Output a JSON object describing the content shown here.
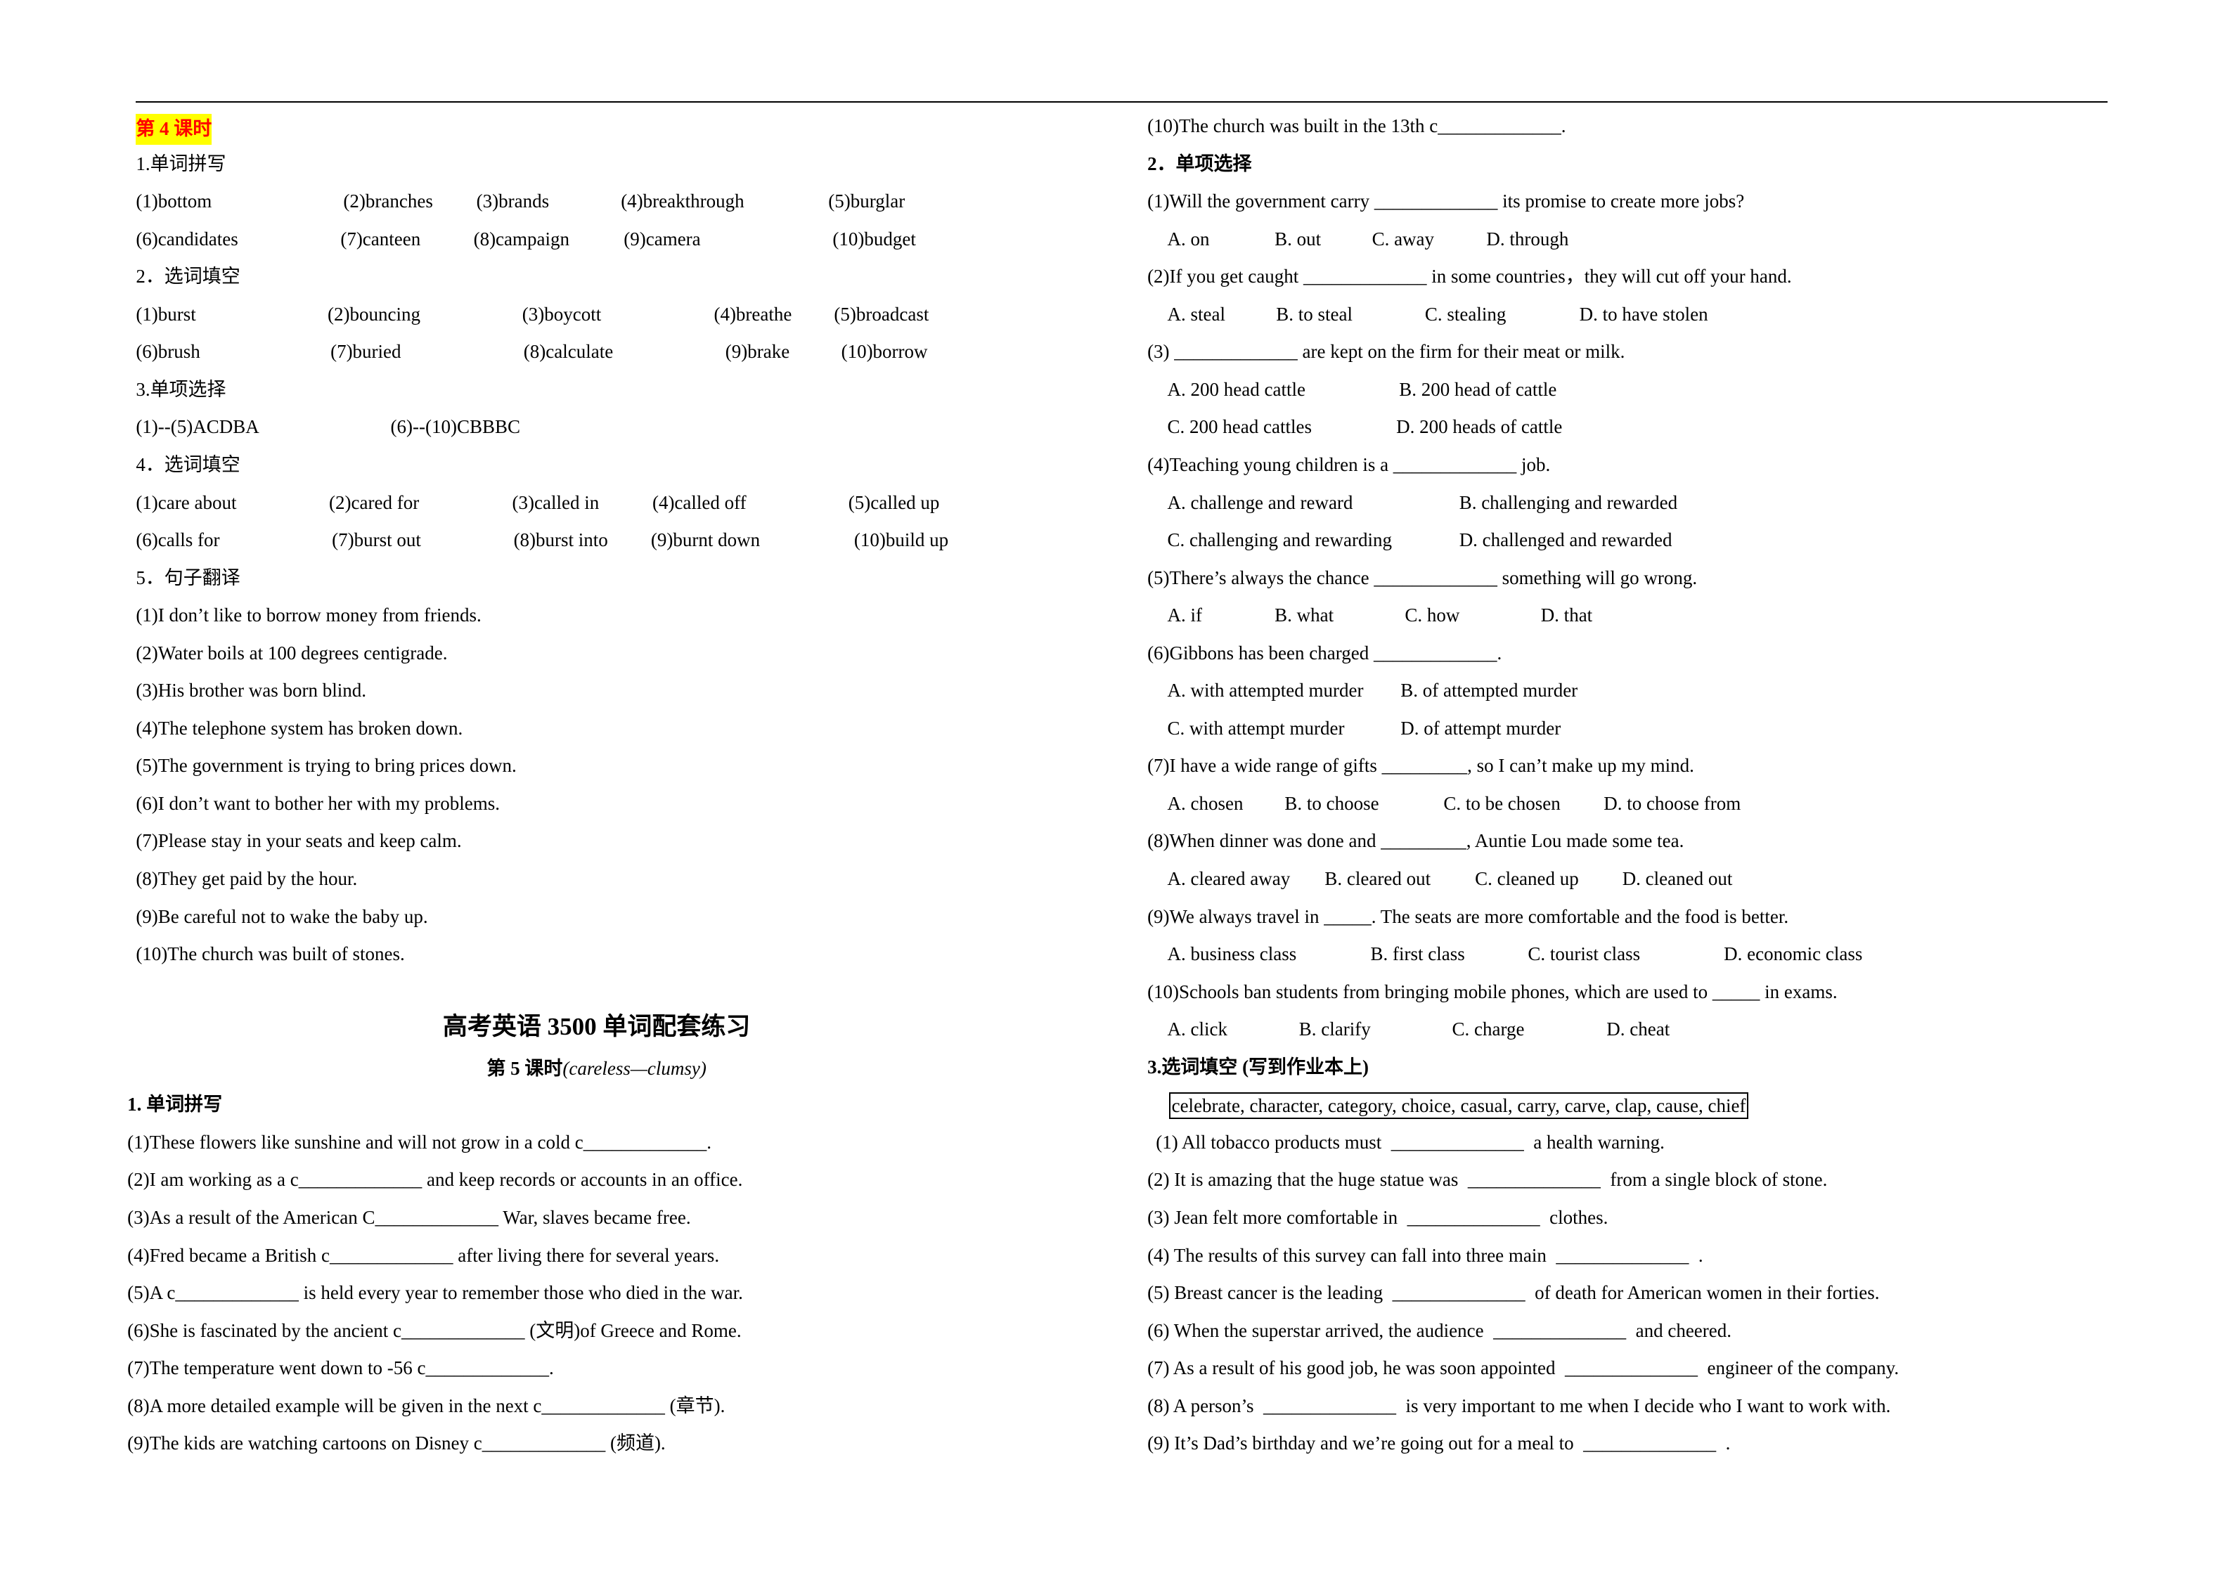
{
  "lesson4": {
    "title": "第 4 课时",
    "s1_heading": "1.单词拼写",
    "s1_answers": [
      "(1)bottom",
      "(2)branches",
      "(3)brands",
      "(4)breakthrough",
      "(5)burglar",
      "(6)candidates",
      "(7)canteen",
      "(8)campaign",
      "(9)camera",
      "(10)budget"
    ],
    "s2_heading": "2．选词填空",
    "s2_answers": [
      "(1)burst",
      "(2)bouncing",
      "(3)boycott",
      "(4)breathe",
      "(5)broadcast",
      "(6)brush",
      "(7)buried",
      "(8)calculate",
      "(9)brake",
      "(10)borrow"
    ],
    "s3_heading": "3.单项选择",
    "s3_answers": [
      "(1)--(5)ACDBA",
      "(6)--(10)CBBBC"
    ],
    "s4_heading": "4．选词填空",
    "s4_answers": [
      "(1)care about",
      "(2)cared for",
      "(3)called in",
      "(4)called off",
      "(5)called up",
      "(6)calls for",
      "(7)burst out",
      "(8)burst into",
      "(9)burnt down",
      "(10)build up"
    ],
    "s5_heading": "5．句子翻译",
    "s5_sentences": [
      "(1)I don’t like to borrow money from friends.",
      "(2)Water boils at 100 degrees centigrade.",
      "(3)His brother was born blind.",
      "(4)The telephone system has broken down.",
      "(5)The government is trying to bring prices down.",
      "(6)I don’t want to bother her with my problems.",
      "(7)Please stay in your seats and keep calm.",
      "(8)They get paid by the hour.",
      "(9)Be careful not to wake the baby up.",
      "(10)The church was built of stones."
    ]
  },
  "lesson5": {
    "doc_title": "高考英语 3500 单词配套练习",
    "subtitle_prefix": "第 5 课时",
    "subtitle_range": "(careless—clumsy)",
    "ex1": {
      "heading": "1. 单词拼写",
      "items": [
        "(1)These flowers like sunshine and will not grow in a cold c_____________.",
        "(2)I am working as a c_____________ and keep records or accounts in an office.",
        "(3)As a result of the American C_____________ War, slaves became free.",
        "(4)Fred became a British c_____________ after living there for several years.",
        "(5)A c_____________ is held every year to remember those who died in the war.",
        "(6)She is fascinated by the ancient c_____________ (文明)of Greece and Rome.",
        "(7)The temperature went down to -56 c_____________.",
        "(8)A more detailed example will be given in the next c_____________ (章节).",
        "(9)The kids are watching cartoons on Disney c_____________ (频道).",
        "(10)The church was built in the 13th c_____________."
      ]
    },
    "ex2": {
      "heading": "2．单项选择",
      "questions": [
        {
          "stem": "(1)Will the government carry _____________ its promise to create more jobs?",
          "options": [
            "A. on",
            "B. out",
            "C. away",
            "D. through"
          ]
        },
        {
          "stem": "(2)If you get caught _____________ in some countries，they will cut off your hand.",
          "options": [
            "A. steal",
            "B. to steal",
            "C. stealing",
            "D. to have stolen"
          ]
        },
        {
          "stem": "(3) _____________ are kept on the firm for their meat or milk.",
          "options": [
            "A. 200 head cattle",
            "B. 200 head of cattle",
            "C. 200 head cattles",
            "D. 200 heads of cattle"
          ]
        },
        {
          "stem": "(4)Teaching young children is a _____________ job.",
          "options": [
            "A. challenge and reward",
            "B. challenging and rewarded",
            "C. challenging and rewarding",
            "D. challenged and rewarded"
          ]
        },
        {
          "stem": "(5)There’s always the chance _____________ something will go wrong.",
          "options": [
            "A. if",
            "B. what",
            "C. how",
            "D. that"
          ]
        },
        {
          "stem": "(6)Gibbons has been charged _____________.",
          "options": [
            "A. with attempted murder",
            "B. of attempted murder",
            "C. with attempt murder",
            "D. of attempt murder"
          ]
        },
        {
          "stem": "(7)I have a wide range of gifts _________, so I can’t make up my mind.",
          "options": [
            "A. chosen",
            "B. to choose",
            "C. to be chosen",
            "D. to choose from"
          ]
        },
        {
          "stem": "(8)When dinner was done and _________, Auntie Lou made some tea.",
          "options": [
            "A. cleared away",
            "B. cleared out",
            "C. cleaned up",
            "D. cleaned out"
          ]
        },
        {
          "stem": "(9)We always travel in _____. The seats are more comfortable and the food is better.",
          "options": [
            "A. business class",
            "B. first class",
            "C. tourist class",
            "D. economic class"
          ]
        },
        {
          "stem": "(10)Schools ban students from bringing mobile phones, which are used to _____ in exams.",
          "options": [
            "A. click",
            "B. clarify",
            "C. charge",
            "D. cheat"
          ]
        }
      ]
    },
    "ex3": {
      "heading": "3.选词填空",
      "note": "(写到作业本上)",
      "word_box": "celebrate, character, category, choice, casual, carry, carve, clap, cause, chief",
      "items": [
        "(1) All tobacco products must  ______________  a health warning.",
        "(2) It is amazing that the huge statue was  ______________  from a single block of stone.",
        "(3) Jean felt more comfortable in  ______________  clothes.",
        "(4) The results of this survey can fall into three main  ______________  .",
        "(5) Breast cancer is the leading  ______________  of death for American women in their forties.",
        "(6) When the superstar arrived, the audience  ______________  and cheered.",
        "(7) As a result of his good job, he was soon appointed  ______________  engineer of the company.",
        "(8) A person’s  ______________  is very important to me when I decide who I want to work with.",
        "(9) It’s Dad’s birthday and we’re going out for a meal to  ______________  ."
      ]
    }
  }
}
